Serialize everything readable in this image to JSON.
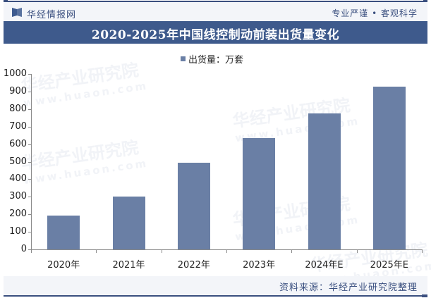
{
  "header": {
    "brand": "华经情报网",
    "slogan": "专业严谨 • 客观科学"
  },
  "title": "2020-2025年中国线控制动前装出货量变化",
  "legend": {
    "label": "出货量：万套",
    "color": "#6a7fa5"
  },
  "footer": {
    "source": "资料来源：华经产业研究院整理"
  },
  "watermark": {
    "text": "华经产业研究院",
    "url": "www.huaon.com"
  },
  "chart_data": {
    "type": "bar",
    "title": "2020-2025年中国线控制动前装出货量变化",
    "categories": [
      "2020年",
      "2021年",
      "2022年",
      "2023年",
      "2024年E",
      "2025年E"
    ],
    "series": [
      {
        "name": "出货量：万套",
        "values": [
          193,
          303,
          495,
          635,
          776,
          928
        ],
        "color": "#6a7fa5"
      }
    ],
    "xlabel": "",
    "ylabel": "",
    "ylim": [
      0,
      1000
    ],
    "yticks": [
      0,
      100,
      200,
      300,
      400,
      500,
      600,
      700,
      800,
      900,
      1000
    ],
    "grid": false,
    "legend_position": "top-center"
  }
}
